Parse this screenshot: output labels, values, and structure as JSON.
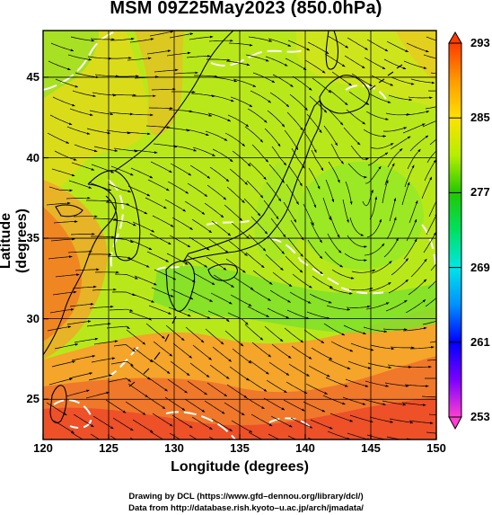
{
  "title": "MSM 09Z25May2023 (850.0hPa)",
  "map": {
    "x_axis": {
      "label": "Longitude (degrees)",
      "range": [
        120,
        150
      ],
      "ticks": [
        {
          "value": 120,
          "label": "120"
        },
        {
          "value": 125,
          "label": "125"
        },
        {
          "value": 130,
          "label": "130"
        },
        {
          "value": 135,
          "label": "135"
        },
        {
          "value": 140,
          "label": "140"
        },
        {
          "value": 145,
          "label": "145"
        },
        {
          "value": 150,
          "label": "150"
        }
      ]
    },
    "y_axis": {
      "label": "Latitude  (degrees)",
      "range": [
        22.5,
        47.9
      ],
      "ticks": [
        {
          "value": 25,
          "label": "25"
        },
        {
          "value": 30,
          "label": "30"
        },
        {
          "value": 35,
          "label": "35"
        },
        {
          "value": 40,
          "label": "40"
        },
        {
          "value": 45,
          "label": "45"
        }
      ]
    },
    "grid": true,
    "colorbar": {
      "min": 253,
      "max": 293,
      "ticks": [
        {
          "value": 253,
          "label": "253"
        },
        {
          "value": 261,
          "label": "261"
        },
        {
          "value": 269,
          "label": "269"
        },
        {
          "value": 277,
          "label": "277"
        },
        {
          "value": 285,
          "label": "285"
        },
        {
          "value": 293,
          "label": "293"
        }
      ],
      "colors": [
        "#ff3fd2",
        "#7a00ff",
        "#0000ff",
        "#0090ff",
        "#00e6e6",
        "#00e060",
        "#22c800",
        "#b6ee00",
        "#ffe100",
        "#ff9a00",
        "#ff3c00"
      ]
    },
    "cyclone_center": {
      "lon": 144.6,
      "lat": 37.2
    },
    "field_colors": {
      "warm": "#f26a1c",
      "mid": "#d4ec18",
      "cool": "#7fe42a",
      "land": "#000000",
      "contour": "#ffffff"
    }
  },
  "credits": {
    "drawing": "Drawing by DCL (https://www.gfd–dennou.org/library/dcl/)",
    "data": "Data from http://database.rish.kyoto–u.ac.jp/arch/jmadata/"
  }
}
